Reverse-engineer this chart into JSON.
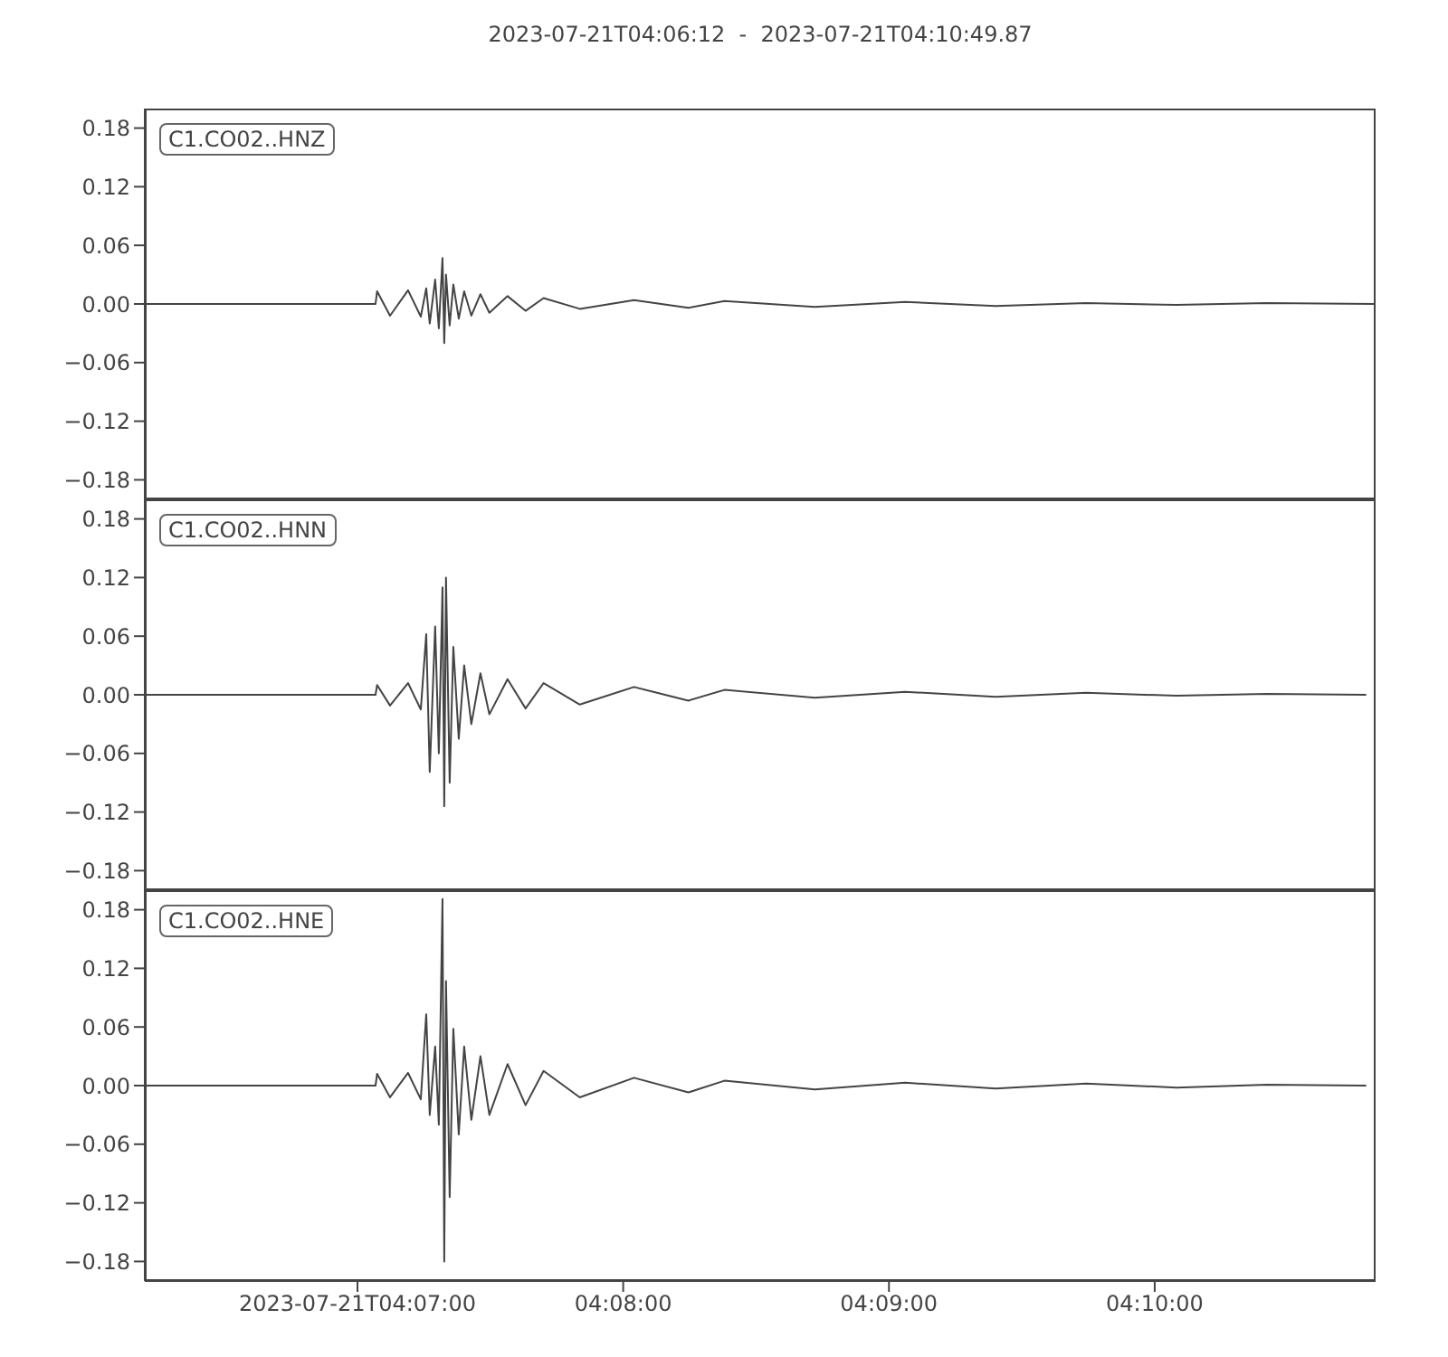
{
  "chart_data": [
    {
      "type": "line",
      "title": "2023-07-21T04:06:12  -  2023-07-21T04:10:49.87",
      "legend": "top left",
      "tick_labels": "y",
      "xlim": [
        4.10333,
        4.18052
      ],
      "ylim": [
        -0.2,
        0.2
      ],
      "yticks": [
        0.18,
        0.12,
        0.06,
        {
          "value": 0,
          "label": "0.00"
        },
        {
          "value": -0.06,
          "label": "−0.06"
        },
        {
          "value": -0.12,
          "label": "−0.12"
        },
        {
          "value": -0.18,
          "label": "−0.18"
        }
      ],
      "series": [
        {
          "name": "C1.CO02..HNZ",
          "color": "#444444",
          "x": [
            4.10333,
            4.1178,
            4.1179,
            4.11871,
            4.11984,
            4.12064,
            4.12098,
            4.1212,
            4.12154,
            4.12177,
            4.122,
            4.12211,
            4.12222,
            4.12245,
            4.12268,
            4.12302,
            4.12336,
            4.12381,
            4.12438,
            4.12494,
            4.12608,
            4.12721,
            4.12834,
            4.13061,
            4.13401,
            4.13742,
            4.13968,
            4.14535,
            4.15102,
            4.15669,
            4.16236,
            4.16803,
            4.1737,
            4.1805
          ],
          "values": [
            0,
            0,
            0.013,
            -0.012,
            0.014,
            -0.013,
            0.016,
            -0.02,
            0.025,
            -0.025,
            0.047,
            -0.04,
            0.03,
            -0.022,
            0.02,
            -0.015,
            0.013,
            -0.012,
            0.01,
            -0.009,
            0.008,
            -0.007,
            0.006,
            -0.005,
            0.004,
            -0.004,
            0.003,
            -0.003,
            0.002,
            -0.002,
            0.001,
            -0.001,
            0.001,
            0
          ]
        }
      ]
    },
    {
      "type": "line",
      "legend": "top left",
      "tick_labels": "y",
      "xlim": [
        4.10333,
        4.18052
      ],
      "ylim": [
        -0.2,
        0.2
      ],
      "yticks": [
        0.18,
        0.12,
        0.06,
        {
          "value": 0,
          "label": "0.00"
        },
        {
          "value": -0.06,
          "label": "−0.06"
        },
        {
          "value": -0.12,
          "label": "−0.12"
        },
        {
          "value": -0.18,
          "label": "−0.18"
        }
      ],
      "series": [
        {
          "name": "C1.CO02..HNN",
          "color": "#444444",
          "x": [
            4.10333,
            4.1178,
            4.1179,
            4.11871,
            4.11984,
            4.12064,
            4.12098,
            4.1212,
            4.12154,
            4.12177,
            4.122,
            4.12211,
            4.12222,
            4.12245,
            4.12268,
            4.12302,
            4.12336,
            4.12381,
            4.12438,
            4.12494,
            4.12608,
            4.12721,
            4.12834,
            4.13061,
            4.13401,
            4.13742,
            4.13968,
            4.14535,
            4.15102,
            4.15669,
            4.16236,
            4.16803,
            4.1737,
            4.17993
          ],
          "values": [
            0,
            0,
            0.01,
            -0.011,
            0.012,
            -0.015,
            0.062,
            -0.079,
            0.07,
            -0.06,
            0.11,
            -0.114,
            0.12,
            -0.09,
            0.049,
            -0.045,
            0.03,
            -0.03,
            0.022,
            -0.02,
            0.016,
            -0.014,
            0.012,
            -0.01,
            0.008,
            -0.006,
            0.005,
            -0.003,
            0.003,
            -0.002,
            0.002,
            -0.001,
            0.001,
            0
          ]
        }
      ]
    },
    {
      "type": "line",
      "legend": "top left",
      "xlim": [
        4.10333,
        4.18052
      ],
      "ylim": [
        -0.2,
        0.2
      ],
      "yticks": [
        0.18,
        0.12,
        0.06,
        {
          "value": 0,
          "label": "0.00"
        },
        {
          "value": -0.06,
          "label": "−0.06"
        },
        {
          "value": -0.12,
          "label": "−0.12"
        },
        {
          "value": -0.18,
          "label": "−0.18"
        }
      ],
      "xticks": [
        {
          "value": 4.116667,
          "label": "2023-07-21T04:07:00"
        },
        {
          "value": 4.133333,
          "label": "04:08:00"
        },
        {
          "value": 4.15,
          "label": "04:09:00"
        },
        {
          "value": 4.166667,
          "label": "04:10:00"
        }
      ],
      "series": [
        {
          "name": "C1.CO02..HNE",
          "color": "#444444",
          "x": [
            4.10333,
            4.1178,
            4.1179,
            4.11871,
            4.11984,
            4.12064,
            4.12098,
            4.1212,
            4.12154,
            4.12177,
            4.122,
            4.12211,
            4.12222,
            4.12245,
            4.12268,
            4.12302,
            4.12336,
            4.12381,
            4.12438,
            4.12494,
            4.12608,
            4.12721,
            4.12834,
            4.13061,
            4.13401,
            4.13742,
            4.13968,
            4.14535,
            4.15102,
            4.15669,
            4.16236,
            4.16803,
            4.1737,
            4.17993
          ],
          "values": [
            0,
            0,
            0.012,
            -0.012,
            0.013,
            -0.014,
            0.073,
            -0.03,
            0.04,
            -0.04,
            0.191,
            -0.18,
            0.107,
            -0.114,
            0.058,
            -0.05,
            0.04,
            -0.035,
            0.03,
            -0.03,
            0.022,
            -0.02,
            0.015,
            -0.012,
            0.008,
            -0.007,
            0.005,
            -0.004,
            0.003,
            -0.003,
            0.002,
            -0.002,
            0.001,
            0
          ]
        }
      ]
    }
  ]
}
